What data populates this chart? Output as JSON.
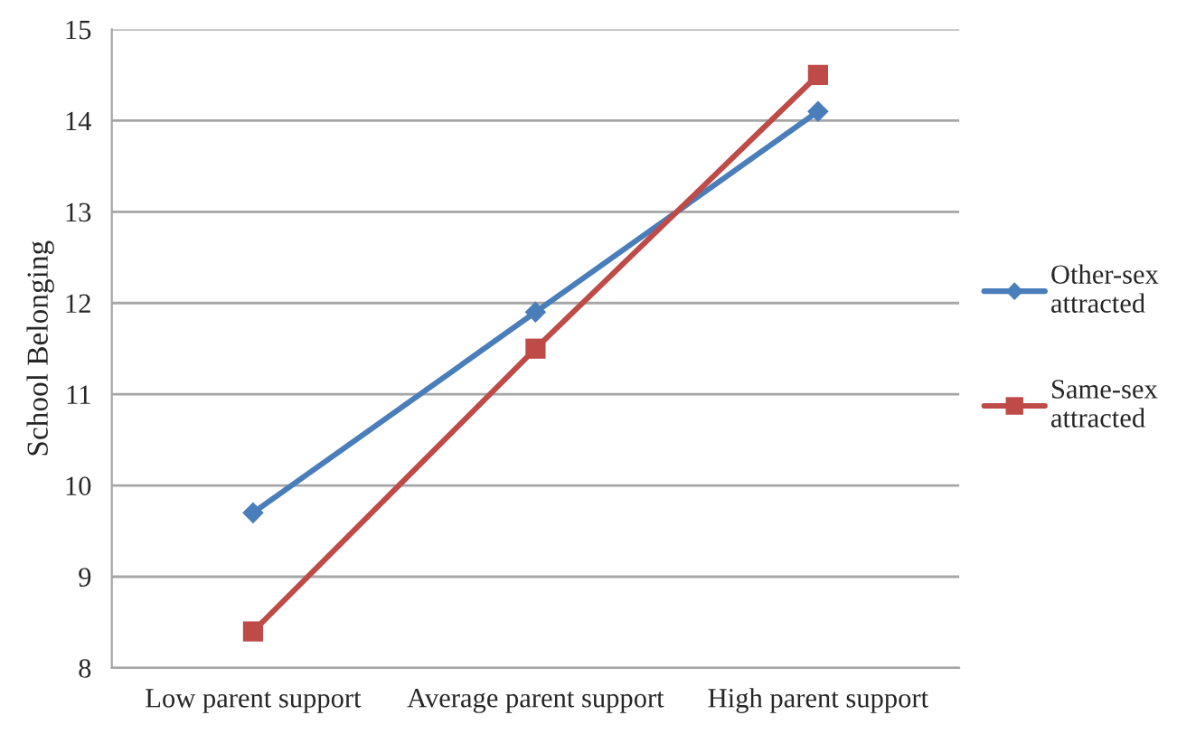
{
  "chart_data": {
    "type": "line",
    "ylabel": "School Belonging",
    "categories": [
      "Low parent support",
      "Average parent support",
      "High parent support"
    ],
    "series": [
      {
        "name": "Other-sex\nattracted",
        "color": "#4a7ebb",
        "marker": "diamond",
        "values": [
          9.7,
          11.9,
          14.1
        ]
      },
      {
        "name": "Same-sex\nattracted",
        "color": "#be4b48",
        "marker": "square",
        "values": [
          8.4,
          11.5,
          14.5
        ]
      }
    ],
    "ylim": [
      8,
      15
    ],
    "yticks": [
      8,
      9,
      10,
      11,
      12,
      13,
      14,
      15
    ],
    "grid": "y",
    "legend": "right",
    "line_style": "solid"
  }
}
